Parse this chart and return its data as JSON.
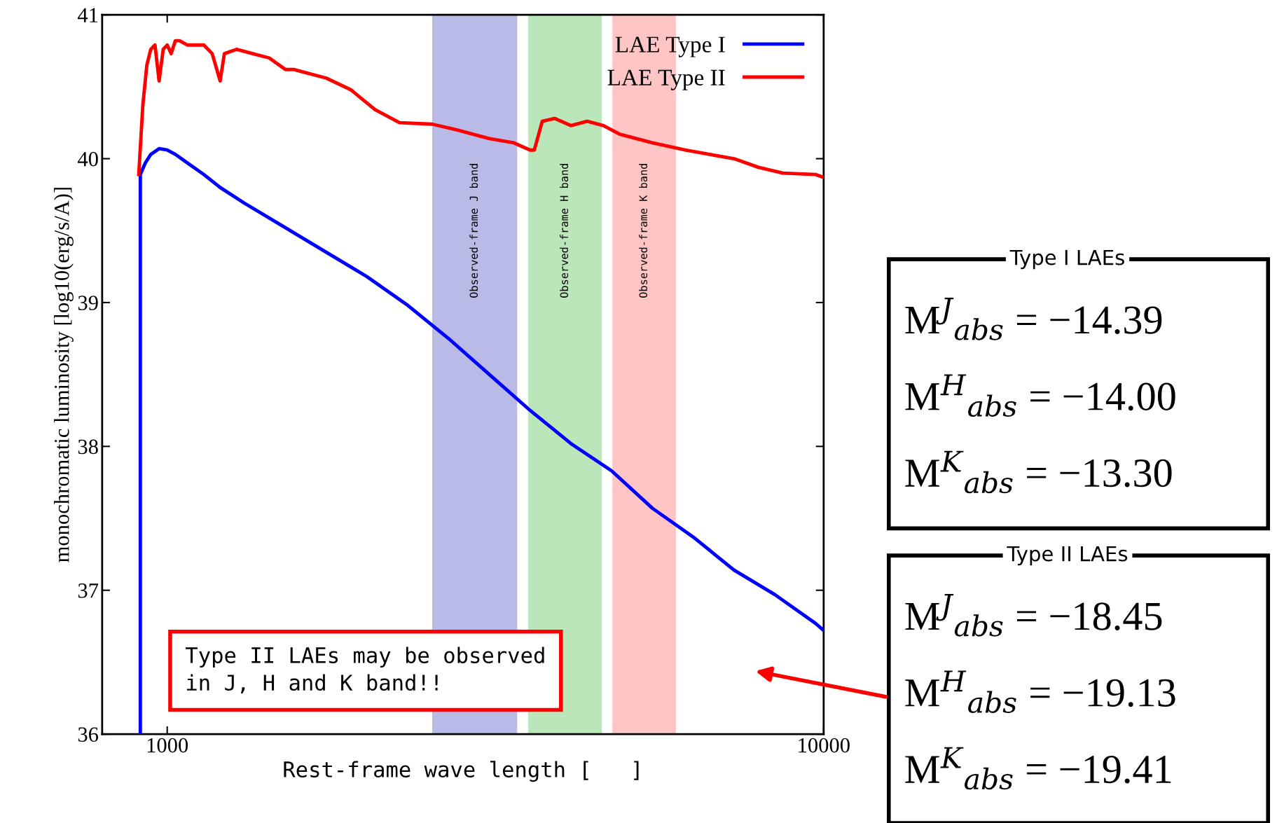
{
  "chart_data": {
    "type": "line",
    "xlabel": "Rest-frame wave length [   ]",
    "ylabel": "monochromatic luminosity [log10(erg/s/A)]",
    "log": "x",
    "xlim": [
      796,
      10000
    ],
    "xticks": [
      1000,
      10000
    ],
    "ylim": [
      36,
      41
    ],
    "yticks": [
      36,
      37,
      38,
      39,
      40,
      41
    ],
    "grid": false,
    "legend": "top right",
    "line_style": "solid",
    "marker": "none",
    "series": [
      {
        "name": "LAE Type I",
        "color": "#0000ff",
        "x": [
          910,
          910,
          926,
          944,
          972,
          1000,
          1029,
          1074,
          1137,
          1204,
          1312,
          1514,
          1747,
          2015,
          2326,
          2683,
          3095,
          3572,
          4120,
          4754,
          5484,
          6328,
          7302,
          8425,
          9719,
          10000
        ],
        "values": [
          36.0,
          39.89,
          39.97,
          40.03,
          40.07,
          40.06,
          40.03,
          39.97,
          39.89,
          39.8,
          39.69,
          39.52,
          39.35,
          39.18,
          38.98,
          38.75,
          38.5,
          38.25,
          38.02,
          37.83,
          37.57,
          37.37,
          37.14,
          36.97,
          36.77,
          36.72
        ]
      },
      {
        "name": "LAE Type II",
        "color": "#ff0000",
        "x": [
          905,
          918,
          931,
          944,
          958,
          972,
          986,
          1000,
          1014,
          1029,
          1044,
          1074,
          1137,
          1171,
          1204,
          1222,
          1275,
          1350,
          1430,
          1514,
          1558,
          1650,
          1747,
          1903,
          2074,
          2259,
          2533,
          2761,
          3095,
          3373,
          3572,
          3624,
          3727,
          3891,
          4120,
          4363,
          4620,
          4891,
          5484,
          6151,
          6701,
          7302,
          7955,
          8667,
          9719,
          10000
        ],
        "values": [
          39.89,
          40.37,
          40.65,
          40.76,
          40.79,
          40.54,
          40.76,
          40.79,
          40.73,
          40.82,
          40.82,
          40.79,
          40.79,
          40.73,
          40.54,
          40.73,
          40.76,
          40.73,
          40.7,
          40.62,
          40.62,
          40.59,
          40.56,
          40.48,
          40.34,
          40.25,
          40.24,
          40.2,
          40.14,
          40.11,
          40.06,
          40.06,
          40.26,
          40.28,
          40.23,
          40.26,
          40.23,
          40.17,
          40.11,
          40.06,
          40.03,
          40.0,
          39.94,
          39.9,
          39.89,
          39.87
        ]
      }
    ],
    "bands": [
      {
        "axis": "x",
        "from": 2533,
        "to": 3413,
        "label": "Observed-frame J band",
        "color": "#babae6"
      },
      {
        "axis": "x",
        "from": 3548,
        "to": 4592,
        "label": "Observed-frame H band",
        "color": "#bae6ba"
      },
      {
        "axis": "x",
        "from": 4766,
        "to": 5955,
        "label": "Observed-frame K band",
        "color": "#ffc4c4"
      }
    ],
    "annotations": [
      "Type II LAEs may be observed\nin J, H and K band!!",
      "Type I LAEs",
      "M$^{J}$$_{abs}$ = −14.39",
      "M$^{H}$$_{abs}$ = −14.00",
      "M$^{K}$$_{abs}$ = −13.30",
      "Type II LAEs",
      "M$^{J}$$_{abs}$ = −18.45",
      "M$^{H}$$_{abs}$ = −19.13",
      "M$^{K}$$_{abs}$ = −19.41"
    ]
  }
}
